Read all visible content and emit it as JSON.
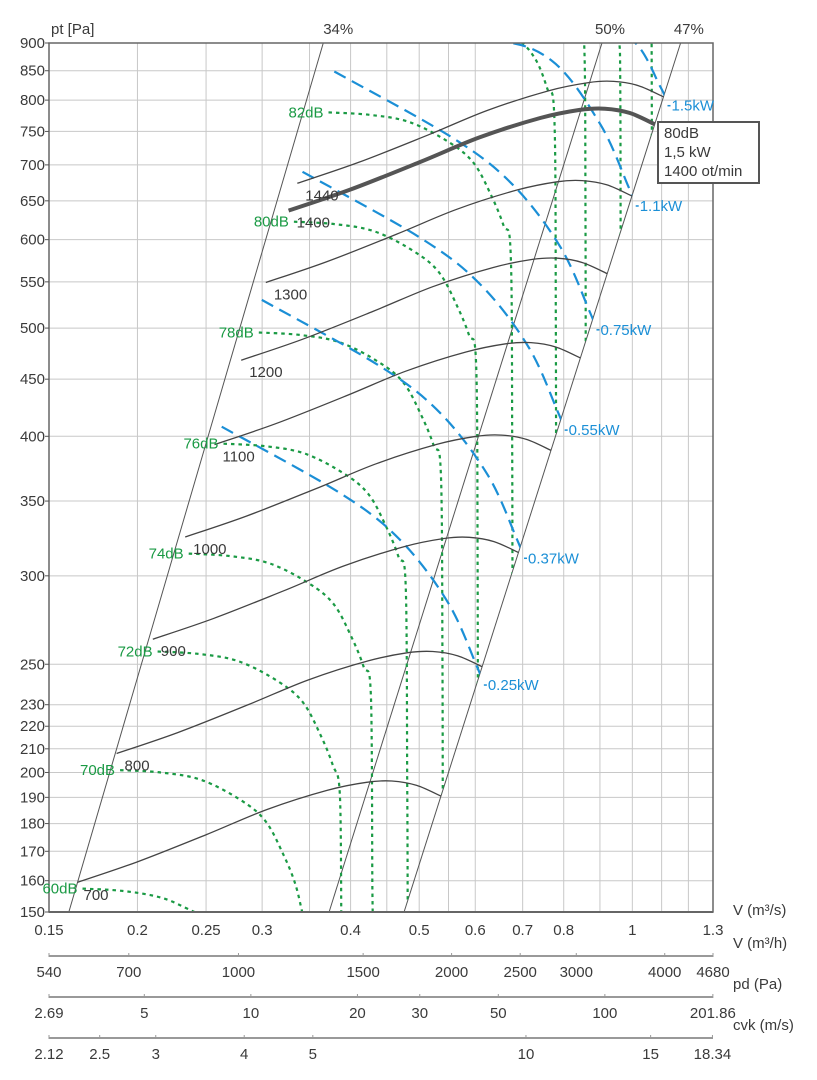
{
  "chart_data": {
    "type": "line",
    "title": "",
    "ylabel": "pt [Pa]",
    "xlabel": "V (m³/s)",
    "x_scale": "log",
    "y_scale": "log",
    "xlim": [
      0.15,
      1.3
    ],
    "ylim": [
      150,
      900
    ],
    "grid": true,
    "y_ticks": [
      150,
      160,
      170,
      180,
      190,
      200,
      210,
      220,
      230,
      250,
      300,
      350,
      400,
      450,
      500,
      550,
      600,
      650,
      700,
      750,
      800,
      850,
      900
    ],
    "x_ticks": [
      0.15,
      0.2,
      0.25,
      0.3,
      0.4,
      0.5,
      0.6,
      0.7,
      0.8,
      1,
      1.3
    ],
    "x_grid": [
      0.2,
      0.25,
      0.3,
      0.35,
      0.4,
      0.45,
      0.5,
      0.55,
      0.6,
      0.7,
      0.8,
      0.9,
      1,
      1.1,
      1.2
    ],
    "secondary_axes": [
      {
        "label": "V (m³/h)",
        "min": 540,
        "max": 4680,
        "power": 1,
        "ticks": [
          540,
          700,
          1000,
          1500,
          2000,
          2500,
          3000,
          4000,
          4680
        ]
      },
      {
        "label": "pd (Pa)",
        "min": 2.69,
        "max": 201.86,
        "power": 2,
        "ticks": [
          2.69,
          5,
          10,
          20,
          30,
          50,
          100,
          201.86
        ]
      },
      {
        "label": "cvk (m/s)",
        "min": 2.12,
        "max": 18.34,
        "power": 1,
        "ticks": [
          2.12,
          2.5,
          3,
          4,
          5,
          10,
          15,
          18.34
        ]
      }
    ],
    "speed_curves": {
      "unit": "rpm",
      "base_rpm": 1400,
      "base_points": [
        [
          0.327,
          637
        ],
        [
          0.399,
          665
        ],
        [
          0.501,
          704
        ],
        [
          0.609,
          741
        ],
        [
          0.741,
          771
        ],
        [
          0.843,
          784
        ],
        [
          0.915,
          786
        ],
        [
          0.992,
          779
        ],
        [
          1.077,
          761
        ]
      ],
      "series": [
        {
          "rpm": 700,
          "label": "700"
        },
        {
          "rpm": 800,
          "label": "800"
        },
        {
          "rpm": 900,
          "label": "900"
        },
        {
          "rpm": 1000,
          "label": "1000"
        },
        {
          "rpm": 1100,
          "label": "1100"
        },
        {
          "rpm": 1200,
          "label": "1200"
        },
        {
          "rpm": 1300,
          "label": "1300"
        },
        {
          "rpm": 1400,
          "label": "1400",
          "highlighted": true
        },
        {
          "rpm": 1440,
          "label": "1440"
        }
      ]
    },
    "power_curves": {
      "base_kw": 0.25,
      "base_points": [
        [
          0.263,
          408
        ],
        [
          0.386,
          356
        ],
        [
          0.47,
          323
        ],
        [
          0.549,
          284
        ],
        [
          0.603,
          249
        ],
        [
          0.615,
          241
        ]
      ],
      "series": [
        {
          "kw": 0.25,
          "label": "0.25kW"
        },
        {
          "kw": 0.37,
          "label": "0.37kW"
        },
        {
          "kw": 0.55,
          "label": "0.55kW"
        },
        {
          "kw": 0.75,
          "label": "0.75kW"
        },
        {
          "kw": 1.1,
          "label": "1.1kW"
        },
        {
          "kw": 1.5,
          "label": "1.5kW"
        }
      ]
    },
    "sound_curves": {
      "base_db": 70,
      "base_points": [
        [
          0.189,
          201
        ],
        [
          0.2157,
          200
        ],
        [
          0.2459,
          197
        ],
        [
          0.2796,
          189
        ],
        [
          0.3031,
          181
        ],
        [
          0.3213,
          169
        ],
        [
          0.3341,
          159
        ],
        [
          0.3418,
          150
        ],
        [
          0.3435,
          100
        ],
        [
          0.344,
          40
        ]
      ],
      "series": [
        {
          "db": 60,
          "label": "60dB",
          "scale": 0.885
        },
        {
          "db": 70,
          "label": "70dB",
          "scale": 1.0
        },
        {
          "db": 72,
          "label": "72dB",
          "scale": 1.13
        },
        {
          "db": 74,
          "label": "74dB",
          "scale": 1.25
        },
        {
          "db": 76,
          "label": "76dB",
          "scale": 1.4
        },
        {
          "db": 78,
          "label": "78dB",
          "scale": 1.57
        },
        {
          "db": 80,
          "label": "80dB",
          "scale": 1.76
        },
        {
          "db": 82,
          "label": "82dB",
          "scale": 1.97
        },
        {
          "db": 84,
          "scale": 2.27
        },
        {
          "db": 86,
          "scale": 2.5
        },
        {
          "db": 88,
          "scale": 2.8
        },
        {
          "db": 90,
          "scale": 3.1
        }
      ]
    },
    "efficiency_lines": [
      {
        "label": "34%",
        "points": [
          [
            0.16,
            150
          ],
          [
            0.366,
            900
          ]
        ]
      },
      {
        "label": "50%",
        "points": [
          [
            0.373,
            150
          ],
          [
            0.906,
            900
          ]
        ]
      },
      {
        "label": "47%",
        "points": [
          [
            0.476,
            150
          ],
          [
            1.17,
            900
          ]
        ]
      }
    ],
    "operating_point": {
      "lines": [
        "80dB",
        "1,5 kW",
        "1400 ot/min"
      ]
    },
    "colors": {
      "speed": "#444444",
      "power": "#1b8fd6",
      "sound": "#1a9a44",
      "grid": "#c8c8c8",
      "axis": "#555555"
    }
  }
}
